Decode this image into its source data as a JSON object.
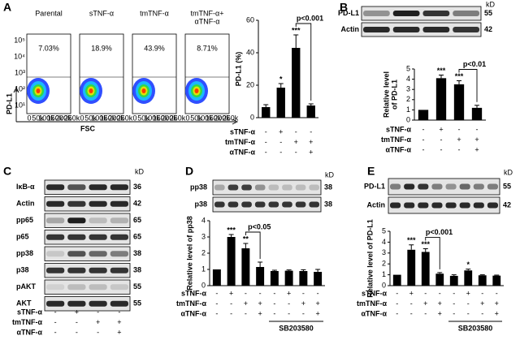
{
  "panels": {
    "a": "A",
    "b": "B",
    "c": "C",
    "d": "D",
    "e": "E"
  },
  "flow": {
    "y_label": "PD-L1",
    "x_label": "FSC",
    "y_ticks": [
      "10⁵",
      "10⁴",
      "10³",
      "10²",
      "10¹"
    ],
    "x_ticks": [
      "0",
      "50k",
      "100k",
      "150k",
      "200k",
      "250k"
    ],
    "plots": [
      {
        "title": [
          "Parental"
        ],
        "percent": "7.03%"
      },
      {
        "title": [
          "sTNF-α"
        ],
        "percent": "18.9%"
      },
      {
        "title": [
          "tmTNF-α"
        ],
        "percent": "43.9%"
      },
      {
        "title": [
          "tmTNF-α+",
          "αTNF-α"
        ],
        "percent": "8.71%"
      }
    ]
  },
  "blots": [
    {
      "unit": "kD",
      "rows": [
        {
          "label": "PD-L1",
          "kd": "55"
        },
        {
          "label": "Actin",
          "kd": "42"
        }
      ]
    },
    {
      "unit": "kD",
      "rows": [
        {
          "label": "IκB-α",
          "kd": "36"
        },
        {
          "label": "Actin",
          "kd": "42"
        },
        {
          "label": "pp65",
          "kd": "65"
        },
        {
          "label": "p65",
          "kd": "65"
        },
        {
          "label": "pp38",
          "kd": "38"
        },
        {
          "label": "p38",
          "kd": "38"
        },
        {
          "label": "pAKT",
          "kd": "55"
        },
        {
          "label": "AKT",
          "kd": "55"
        }
      ],
      "conditions": [
        {
          "name": "sTNF-α",
          "marks": [
            "-",
            "+",
            "-",
            "-"
          ]
        },
        {
          "name": "tmTNF-α",
          "marks": [
            "-",
            "-",
            "+",
            "+"
          ]
        },
        {
          "name": "αTNF-α",
          "marks": [
            "-",
            "-",
            "-",
            "+"
          ]
        }
      ]
    },
    {
      "unit": "kD",
      "rows": [
        {
          "label": "pp38",
          "kd": "38"
        },
        {
          "label": "p38",
          "kd": "38"
        }
      ]
    },
    {
      "unit": "kD",
      "rows": [
        {
          "label": "PD-L1",
          "kd": "55"
        },
        {
          "label": "Actin",
          "kd": "42"
        }
      ]
    }
  ],
  "chart_data": [
    {
      "type": "bar",
      "y_label": "PD-L1 (%)",
      "values": [
        6.5,
        18.5,
        43,
        7.5
      ],
      "errors": [
        1.5,
        2.5,
        8,
        1
      ],
      "value_annotations": [
        null,
        "*",
        "***",
        null
      ],
      "bracket_label": "p<0.001",
      "ylim": [
        0,
        60
      ],
      "yticks": [
        0,
        20,
        40,
        60
      ],
      "color": "#000000",
      "conditions": [
        {
          "name": "sTNF-α",
          "marks": [
            "-",
            "+",
            "-",
            "-"
          ]
        },
        {
          "name": "tmTNF-α",
          "marks": [
            "-",
            "-",
            "+",
            "+"
          ]
        },
        {
          "name": "αTNF-α",
          "marks": [
            "-",
            "-",
            "-",
            "+"
          ]
        }
      ]
    },
    {
      "type": "bar",
      "y_label": [
        "Relative level",
        "of PD-L1"
      ],
      "values": [
        1,
        4.1,
        3.5,
        1.2
      ],
      "errors": [
        null,
        0.3,
        0.35,
        0.25
      ],
      "value_annotations": [
        null,
        "***",
        "***",
        null
      ],
      "bracket_label": "p<0.01",
      "ylim": [
        0,
        5
      ],
      "yticks": [
        0,
        1,
        2,
        3,
        4,
        5
      ],
      "color": "#000000",
      "conditions": [
        {
          "name": "sTNF-α",
          "marks": [
            "-",
            "+",
            "-",
            "-"
          ]
        },
        {
          "name": "tmTNF-α",
          "marks": [
            "-",
            "-",
            "+",
            "+"
          ]
        },
        {
          "name": "αTNF-α",
          "marks": [
            "-",
            "-",
            "-",
            "+"
          ]
        }
      ]
    },
    {
      "type": "bar",
      "y_label": [
        "Relative level of pp38"
      ],
      "values": [
        1,
        3.0,
        2.3,
        1.15,
        0.9,
        0.92,
        0.9,
        0.85
      ],
      "errors": [
        null,
        0.15,
        0.3,
        0.3,
        0.05,
        0.05,
        0.08,
        0.15
      ],
      "value_annotations": [
        null,
        "***",
        "**",
        null,
        null,
        null,
        null,
        null
      ],
      "bracket_label": "p<0.05",
      "ylim": [
        0,
        4
      ],
      "yticks": [
        0,
        1,
        2,
        3,
        4
      ],
      "color": "#000000",
      "group_label": "SB203580",
      "conditions": [
        {
          "name": "sTNF-α",
          "marks": [
            "-",
            "+",
            "-",
            "-",
            "-",
            "+",
            "-",
            "-"
          ]
        },
        {
          "name": "tmTNF-α",
          "marks": [
            "-",
            "-",
            "+",
            "+",
            "-",
            "-",
            "+",
            "+"
          ]
        },
        {
          "name": "αTNF-α",
          "marks": [
            "-",
            "-",
            "-",
            "+",
            "-",
            "-",
            "-",
            "+"
          ]
        }
      ]
    },
    {
      "type": "bar",
      "y_label": [
        "Relative level of PD-L1"
      ],
      "values": [
        1,
        3.3,
        3.1,
        1.1,
        0.9,
        1.4,
        0.95,
        0.92
      ],
      "errors": [
        null,
        0.45,
        0.3,
        0.1,
        0.1,
        0.12,
        0.05,
        0.05
      ],
      "value_annotations": [
        null,
        "***",
        "***",
        null,
        null,
        "*",
        null,
        null
      ],
      "bracket_label": "p<0.001",
      "ylim": [
        0,
        5
      ],
      "yticks": [
        0,
        1,
        2,
        3,
        4,
        5
      ],
      "color": "#000000",
      "group_label": "SB203580",
      "conditions": [
        {
          "name": "sTNF-α",
          "marks": [
            "-",
            "+",
            "-",
            "-",
            "-",
            "+",
            "-",
            "-"
          ]
        },
        {
          "name": "tmTNF-α",
          "marks": [
            "-",
            "-",
            "+",
            "+",
            "-",
            "-",
            "+",
            "+"
          ]
        },
        {
          "name": "αTNF-α",
          "marks": [
            "-",
            "-",
            "-",
            "+",
            "-",
            "-",
            "-",
            "+"
          ]
        }
      ]
    }
  ]
}
